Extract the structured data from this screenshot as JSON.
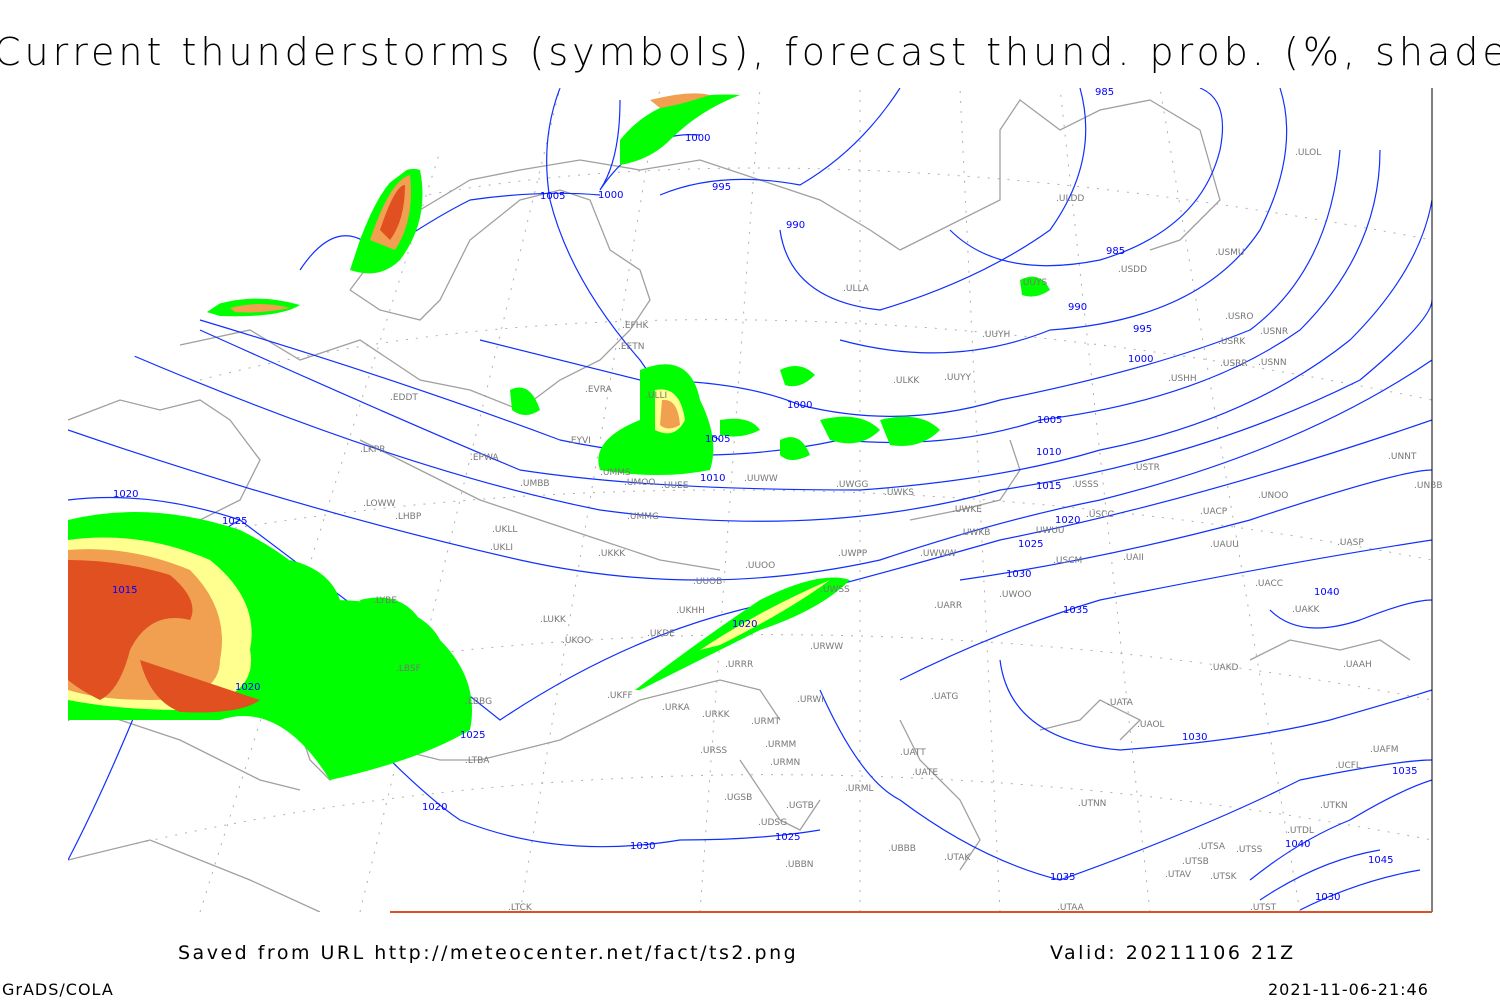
{
  "title": "Current thunderstorms (symbols), forecast thund. prob. (%, shaded)",
  "footer": {
    "saved_from": "Saved from URL http://meteocenter.net/fact/ts2.png",
    "valid": "Valid: 20211106 21Z",
    "software": "GrADS/COLA",
    "timestamp": "2021-11-06-21:46"
  },
  "colors": {
    "isobar": "#1030ff",
    "coastline": "#a0a0a0",
    "prob_low": "#00ff00",
    "prob_mid": "#ffff90",
    "prob_high": "#f0a050",
    "prob_max": "#e05020"
  },
  "isobar_labels": [
    "985",
    "1000",
    "1005",
    "1000",
    "995",
    "990",
    "985",
    "990",
    "995",
    "1000",
    "1000",
    "1005",
    "1005",
    "1010",
    "1010",
    "1015",
    "1020",
    "1025",
    "1030",
    "1035",
    "1040",
    "1020",
    "1025",
    "1015",
    "1020",
    "1025",
    "1020",
    "1025",
    "1020",
    "1030",
    "1035",
    "1030",
    "1040",
    "1045",
    "1035",
    "1030"
  ],
  "stations": [
    "EFHK",
    "EETN",
    "EVRA",
    "ULLI",
    "EYVI",
    "UMMS",
    "UMMG",
    "UMBB",
    "UMOO",
    "UUEE",
    "UUWW",
    "UWGG",
    "UWKS",
    "UWKE",
    "UWKB",
    "ULKK",
    "UUYY",
    "UUYH",
    "UUYS",
    "ULLA",
    "ULDD",
    "ULOL",
    "USDD",
    "USMU",
    "USRO",
    "USRK",
    "USRR",
    "USNN",
    "USHH",
    "USNR",
    "USTR",
    "USSS",
    "USCC",
    "UNNT",
    "UNBB",
    "UNOO",
    "USCM",
    "UWUU",
    "UWWW",
    "UWPP",
    "URWW",
    "UWSS",
    "UARR",
    "UWOO",
    "UATG",
    "UATA",
    "UAOL",
    "UAKD",
    "UAAH",
    "UACC",
    "UAKK",
    "UASP",
    "UACP",
    "UAUU",
    "UAII",
    "UTNN",
    "UTSA",
    "UTSS",
    "UTSB",
    "UTSK",
    "UTAV",
    "UTAA",
    "UTST",
    "UTDL",
    "UTKN",
    "UAFM",
    "UCFL",
    "UUOB",
    "UUOO",
    "UKKK",
    "UKLL",
    "UKLI",
    "LHBP",
    "LOWW",
    "LKPR",
    "EPWA",
    "EDDT",
    "LUKK",
    "UKOO",
    "UKFF",
    "UKDE",
    "UKHH",
    "URRR",
    "URKA",
    "URKK",
    "URMT",
    "URSS",
    "URMM",
    "URMN",
    "URWI",
    "UBBB",
    "UGTB",
    "UGSB",
    "UDSG",
    "UBBN",
    "LBBG",
    "LYBE",
    "LBSF",
    "LTBA",
    "UATE",
    "UATT",
    "URML",
    "UTAK",
    "LTCK"
  ]
}
